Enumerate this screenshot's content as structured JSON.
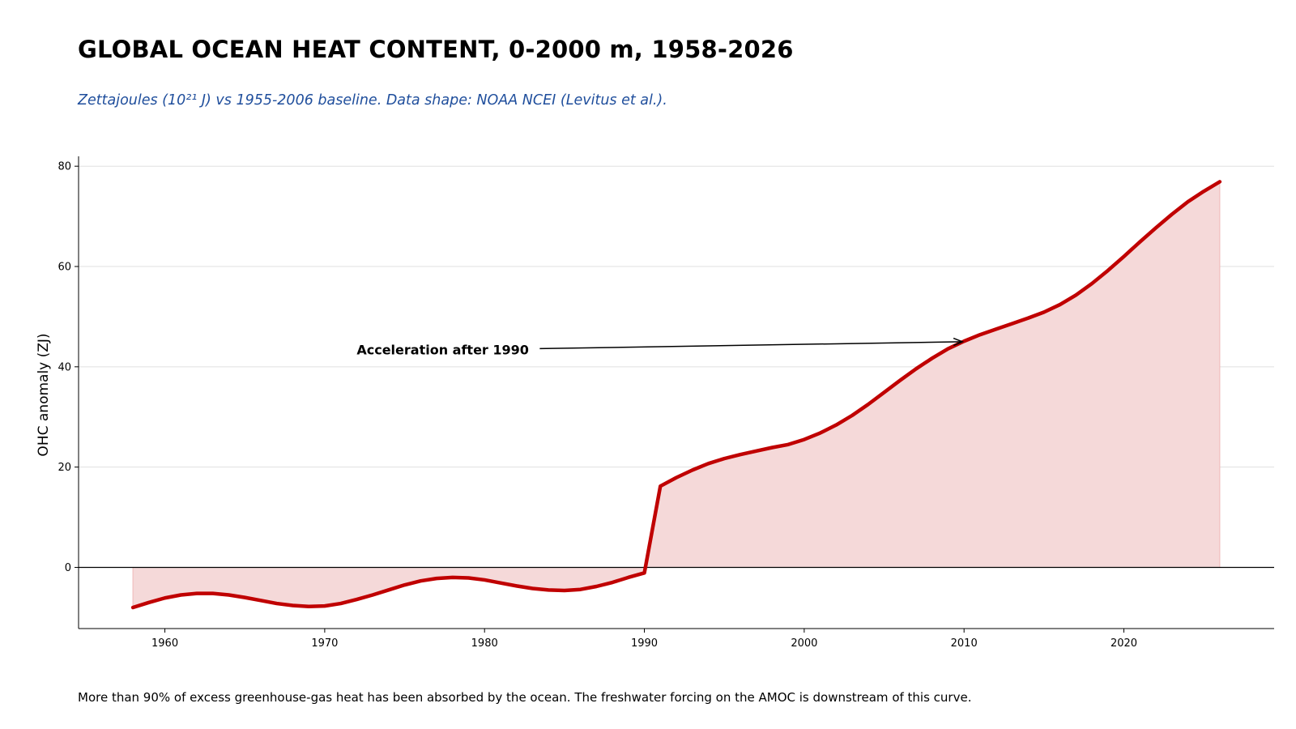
{
  "chart_data": {
    "type": "area",
    "title": "GLOBAL OCEAN HEAT CONTENT, 0-2000 m, 1958-2026",
    "subtitle": "Zettajoules (10²¹ J) vs 1955-2006 baseline. Data shape: NOAA NCEI (Levitus et al.).",
    "xlabel": "",
    "ylabel": "OHC anomaly (ZJ)",
    "xlim": [
      1954.6,
      2029.4
    ],
    "ylim": [
      -12.2,
      81
    ],
    "xticks": [
      1960,
      1970,
      1980,
      1990,
      2000,
      2010,
      2020
    ],
    "yticks": [
      0,
      20,
      40,
      60,
      80
    ],
    "grid": "horizontal",
    "baseline": 0,
    "series": [
      {
        "name": "OHC anomaly",
        "line_color": "#c00000",
        "fill_color": "#f5d9d9",
        "x": [
          1958,
          1959,
          1960,
          1961,
          1962,
          1963,
          1964,
          1965,
          1966,
          1967,
          1968,
          1969,
          1970,
          1971,
          1972,
          1973,
          1974,
          1975,
          1976,
          1977,
          1978,
          1979,
          1980,
          1981,
          1982,
          1983,
          1984,
          1985,
          1986,
          1987,
          1988,
          1989,
          1990,
          1991,
          1992,
          1993,
          1994,
          1995,
          1996,
          1997,
          1998,
          1999,
          2000,
          2001,
          2002,
          2003,
          2004,
          2005,
          2006,
          2007,
          2008,
          2009,
          2010,
          2011,
          2012,
          2013,
          2014,
          2015,
          2016,
          2017,
          2018,
          2019,
          2020,
          2021,
          2022,
          2023,
          2024,
          2025,
          2026
        ],
        "values": [
          -8.0,
          -7.0,
          -6.1,
          -5.5,
          -5.2,
          -5.2,
          -5.5,
          -6.0,
          -6.6,
          -7.2,
          -7.6,
          -7.8,
          -7.7,
          -7.2,
          -6.4,
          -5.5,
          -4.5,
          -3.5,
          -2.7,
          -2.2,
          -2.0,
          -2.1,
          -2.5,
          -3.1,
          -3.7,
          -4.2,
          -4.5,
          -4.6,
          -4.4,
          -3.8,
          -3.0,
          -2.0,
          -1.1,
          16.2,
          17.9,
          19.4,
          20.7,
          21.7,
          22.5,
          23.2,
          23.9,
          24.5,
          25.5,
          26.8,
          28.4,
          30.3,
          32.5,
          34.9,
          37.3,
          39.6,
          41.7,
          43.6,
          45.1,
          46.4,
          47.5,
          48.6,
          49.7,
          50.9,
          52.4,
          54.3,
          56.6,
          59.2,
          62.0,
          64.9,
          67.7,
          70.4,
          72.9,
          75.0,
          76.9
        ]
      }
    ],
    "annotations": [
      {
        "text": "Acceleration after 1990",
        "x": 2010,
        "y": 45,
        "text_x": 1972,
        "text_y": 43.3
      }
    ]
  },
  "footnote": "More than 90% of excess greenhouse-gas heat has been absorbed by the ocean. The freshwater forcing on the AMOC is downstream of this curve."
}
